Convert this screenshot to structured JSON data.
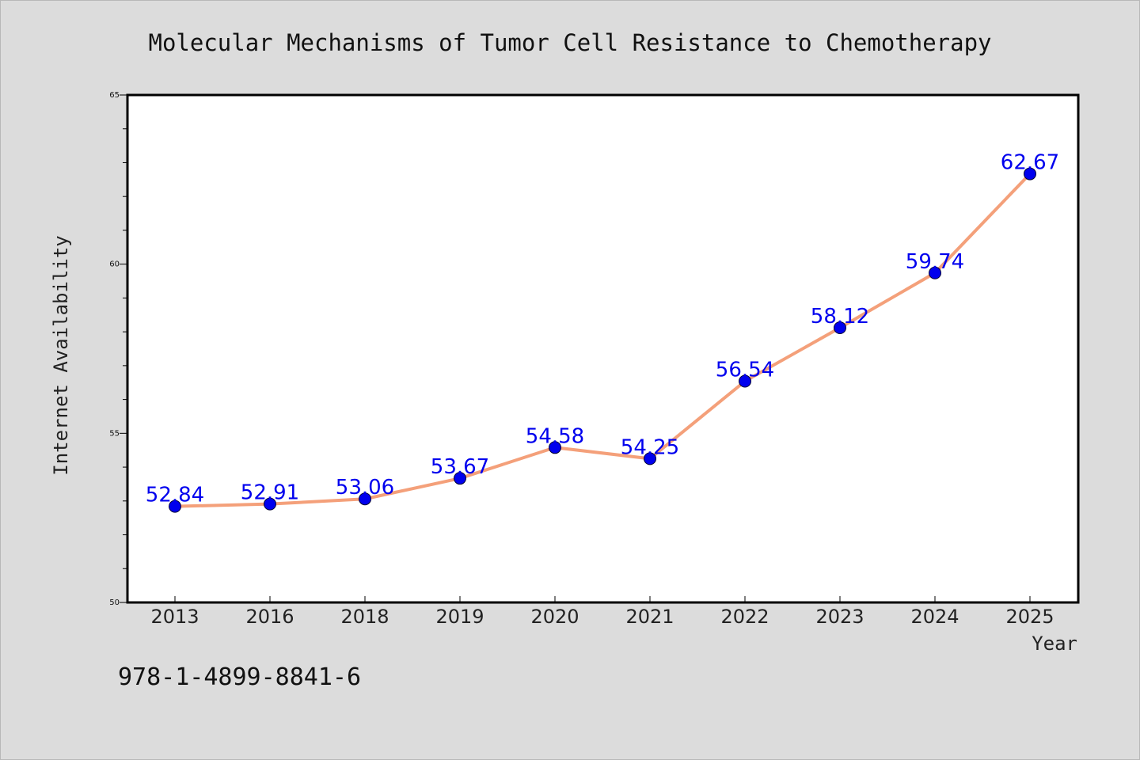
{
  "chart_data": {
    "type": "line",
    "title": "Molecular Mechanisms of Tumor Cell Resistance to Chemotherapy",
    "xlabel": "Year",
    "ylabel": "Internet Availability",
    "categories": [
      "2013",
      "2016",
      "2018",
      "2019",
      "2020",
      "2021",
      "2022",
      "2023",
      "2024",
      "2025"
    ],
    "series": [
      {
        "values": [
          52.84,
          52.91,
          53.06,
          53.67,
          54.58,
          54.25,
          56.54,
          58.12,
          59.74,
          62.67
        ],
        "labels": [
          "52.84",
          "52.91",
          "53.06",
          "53.67",
          "54.58",
          "54.25",
          "56.54",
          "58.12",
          "59.74",
          "62.67"
        ],
        "line_color": "#f4a07a",
        "marker_color": "#0000ee"
      }
    ],
    "ylim": [
      50,
      65
    ],
    "yticks": [
      50,
      55,
      60,
      65
    ],
    "ytick_labels": [
      "50",
      "55",
      "60",
      "65"
    ],
    "grid": false,
    "legend": "none"
  },
  "footer": {
    "isbn": "978-1-4899-8841-6"
  },
  "colors": {
    "background": "#dcdcdc",
    "plot_background": "#ffffff",
    "frame": "#000000"
  }
}
